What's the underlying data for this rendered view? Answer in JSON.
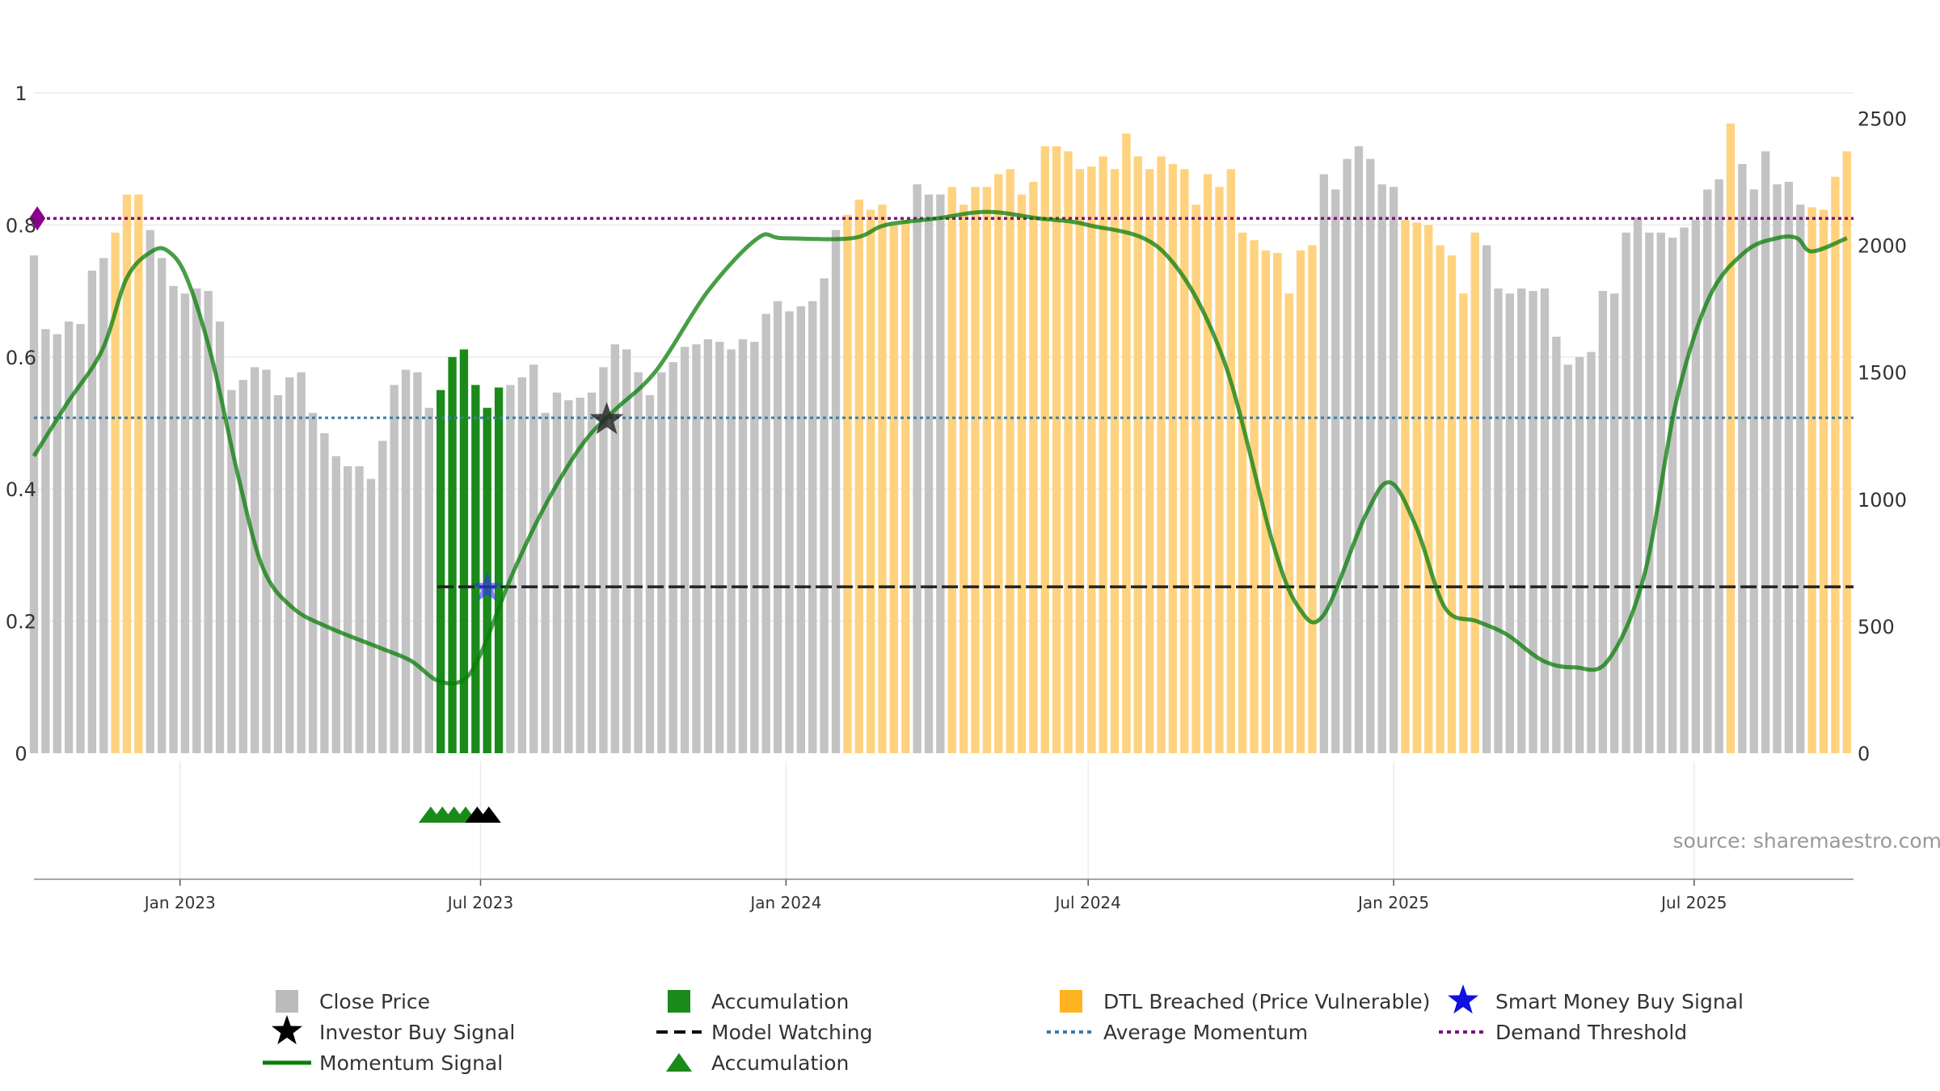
{
  "chart_data": {
    "type": "bar",
    "title": "",
    "source": "source: sharemaestro.com",
    "x_tick_labels": [
      "Jan 2023",
      "Jul 2023",
      "Jan 2024",
      "Jul 2024",
      "Jan 2025",
      "Jul 2025"
    ],
    "x_tick_dates": [
      "2023-01-01",
      "2023-07-01",
      "2024-01-01",
      "2024-07-01",
      "2025-01-01",
      "2025-07-01"
    ],
    "x_range": [
      "2022-10-05",
      "2025-10-05"
    ],
    "left_axis": {
      "ticks": [
        "0",
        "0.2",
        "0.4",
        "0.6",
        "0.8",
        "1"
      ],
      "ylim": [
        0,
        1
      ]
    },
    "right_axis": {
      "ticks": [
        "0",
        "500",
        "1000",
        "1500",
        "2000",
        "2500"
      ],
      "ylim": [
        0,
        2600
      ]
    },
    "grid": true,
    "legend_position": "bottom",
    "close_price_series": {
      "name": "Close Price",
      "start_date": "2022-10-05",
      "interval_days": 7,
      "values": [
        1960,
        1670,
        1650,
        1700,
        1690,
        1900,
        1950,
        2050,
        2200,
        2200,
        2060,
        1950,
        1840,
        1810,
        1830,
        1820,
        1700,
        1430,
        1470,
        1520,
        1510,
        1410,
        1480,
        1500,
        1340,
        1260,
        1170,
        1130,
        1130,
        1080,
        1230,
        1450,
        1510,
        1500,
        1360,
        1430,
        1560,
        1590,
        1450,
        1360,
        1440,
        1450,
        1480,
        1530,
        1340,
        1420,
        1390,
        1400,
        1420,
        1520,
        1610,
        1590,
        1500,
        1410,
        1500,
        1540,
        1600,
        1610,
        1630,
        1620,
        1590,
        1630,
        1620,
        1730,
        1780,
        1740,
        1760,
        1780,
        1870,
        2060,
        2120,
        2180,
        2140,
        2160,
        2080,
        2100,
        2240,
        2200,
        2200,
        2230,
        2160,
        2230,
        2230,
        2280,
        2300,
        2200,
        2250,
        2390,
        2390,
        2370,
        2300,
        2310,
        2350,
        2300,
        2440,
        2350,
        2300,
        2350,
        2320,
        2300,
        2160,
        2280,
        2230,
        2300,
        2050,
        2020,
        1980,
        1970,
        1810,
        1980,
        2000,
        2280,
        2220,
        2340,
        2390,
        2340,
        2240,
        2230,
        2100,
        2090,
        2080,
        2000,
        1960,
        1810,
        2050,
        2000,
        1830,
        1810,
        1830,
        1820,
        1830,
        1640,
        1530,
        1560,
        1580,
        1820,
        1810,
        2050,
        2110,
        2050,
        2050,
        2030,
        2070,
        2100,
        2220,
        2260,
        2480,
        2320,
        2220,
        2370,
        2240,
        2250,
        2160,
        2150,
        2140,
        2270,
        2370
      ],
      "status": [
        "p",
        "p",
        "p",
        "p",
        "p",
        "p",
        "p",
        "d",
        "d",
        "d",
        "p",
        "p",
        "p",
        "p",
        "p",
        "p",
        "p",
        "p",
        "p",
        "p",
        "p",
        "p",
        "p",
        "p",
        "p",
        "p",
        "p",
        "p",
        "p",
        "p",
        "p",
        "p",
        "p",
        "p",
        "p",
        "a",
        "a",
        "a",
        "a",
        "a",
        "a",
        "p",
        "p",
        "p",
        "p",
        "p",
        "p",
        "p",
        "p",
        "p",
        "p",
        "p",
        "p",
        "p",
        "p",
        "p",
        "p",
        "p",
        "p",
        "p",
        "p",
        "p",
        "p",
        "p",
        "p",
        "p",
        "p",
        "p",
        "p",
        "p",
        "d",
        "d",
        "d",
        "d",
        "d",
        "d",
        "p",
        "p",
        "p",
        "d",
        "d",
        "d",
        "d",
        "d",
        "d",
        "d",
        "d",
        "d",
        "d",
        "d",
        "d",
        "d",
        "d",
        "d",
        "d",
        "d",
        "d",
        "d",
        "d",
        "d",
        "d",
        "d",
        "d",
        "d",
        "d",
        "d",
        "d",
        "d",
        "d",
        "d",
        "d",
        "p",
        "p",
        "p",
        "p",
        "p",
        "p",
        "p",
        "d",
        "d",
        "d",
        "d",
        "d",
        "d",
        "d",
        "p",
        "p",
        "p",
        "p",
        "p",
        "p",
        "p",
        "p",
        "p",
        "p",
        "p",
        "p",
        "p",
        "p",
        "p",
        "p",
        "p",
        "p",
        "p",
        "p",
        "p",
        "d",
        "p",
        "p",
        "p",
        "p",
        "p",
        "p",
        "d",
        "d",
        "d",
        "d",
        "d",
        "d",
        "d",
        "d",
        "d",
        "d",
        "d",
        "d",
        "d"
      ]
    },
    "momentum_signal": {
      "name": "Momentum Signal",
      "points": [
        [
          "2022-10-05",
          0.45
        ],
        [
          "2022-10-25",
          0.53
        ],
        [
          "2022-11-15",
          0.61
        ],
        [
          "2022-11-30",
          0.72
        ],
        [
          "2022-12-15",
          0.76
        ],
        [
          "2022-12-25",
          0.76
        ],
        [
          "2023-01-05",
          0.72
        ],
        [
          "2023-01-20",
          0.6
        ],
        [
          "2023-02-05",
          0.42
        ],
        [
          "2023-02-20",
          0.28
        ],
        [
          "2023-03-10",
          0.22
        ],
        [
          "2023-04-01",
          0.19
        ],
        [
          "2023-05-01",
          0.16
        ],
        [
          "2023-05-20",
          0.14
        ],
        [
          "2023-06-05",
          0.11
        ],
        [
          "2023-06-20",
          0.11
        ],
        [
          "2023-07-01",
          0.15
        ],
        [
          "2023-07-20",
          0.27
        ],
        [
          "2023-08-10",
          0.38
        ],
        [
          "2023-09-01",
          0.47
        ],
        [
          "2023-09-20",
          0.52
        ],
        [
          "2023-10-15",
          0.58
        ],
        [
          "2023-11-15",
          0.7
        ],
        [
          "2023-12-15",
          0.78
        ],
        [
          "2023-12-30",
          0.78
        ],
        [
          "2024-02-10",
          0.78
        ],
        [
          "2024-03-01",
          0.8
        ],
        [
          "2024-04-01",
          0.81
        ],
        [
          "2024-05-01",
          0.82
        ],
        [
          "2024-06-01",
          0.81
        ],
        [
          "2024-07-01",
          0.8
        ],
        [
          "2024-08-15",
          0.76
        ],
        [
          "2024-09-20",
          0.6
        ],
        [
          "2024-10-20",
          0.32
        ],
        [
          "2024-11-05",
          0.22
        ],
        [
          "2024-11-20",
          0.21
        ],
        [
          "2024-12-15",
          0.36
        ],
        [
          "2024-12-30",
          0.41
        ],
        [
          "2025-01-15",
          0.34
        ],
        [
          "2025-02-01",
          0.22
        ],
        [
          "2025-02-20",
          0.2
        ],
        [
          "2025-03-10",
          0.18
        ],
        [
          "2025-04-01",
          0.14
        ],
        [
          "2025-04-20",
          0.13
        ],
        [
          "2025-05-10",
          0.14
        ],
        [
          "2025-06-01",
          0.27
        ],
        [
          "2025-06-20",
          0.53
        ],
        [
          "2025-07-10",
          0.69
        ],
        [
          "2025-08-01",
          0.76
        ],
        [
          "2025-08-20",
          0.78
        ],
        [
          "2025-09-01",
          0.78
        ],
        [
          "2025-09-10",
          0.76
        ],
        [
          "2025-10-01",
          0.78
        ]
      ]
    },
    "average_momentum": {
      "name": "Average Momentum",
      "value": 0.508
    },
    "demand_threshold": {
      "name": "Demand Threshold",
      "value": 0.81
    },
    "model_watching": {
      "name": "Model Watching",
      "value": 0.252,
      "start": "2023-06-05",
      "end": "2025-10-05"
    },
    "investor_buy_signal": {
      "name": "Investor Buy Signal",
      "date": "2023-09-15",
      "value": 0.505
    },
    "smart_money_buy_signal": {
      "name": "Smart Money Buy Signal",
      "date": "2023-07-05",
      "value": 0.25
    },
    "demand_marker": {
      "date": "2022-10-07",
      "value": 0.81
    },
    "accumulation_triangles": [
      {
        "date": "2023-06-01",
        "color": "#1a8a1a"
      },
      {
        "date": "2023-06-08",
        "color": "#1a8a1a"
      },
      {
        "date": "2023-06-15",
        "color": "#1a8a1a"
      },
      {
        "date": "2023-06-22",
        "color": "#1a8a1a"
      },
      {
        "date": "2023-06-29",
        "color": "#000000"
      },
      {
        "date": "2023-07-06",
        "color": "#000000"
      }
    ],
    "colors": {
      "price": "#c3c3c3",
      "accumulation": "#1a8a1a",
      "dtl": "#ffd27f",
      "momentum": "#0a7d0a",
      "average": "#3a7ca5",
      "threshold": "#7b147b",
      "watching": "#222222",
      "smart_money": "#3232ff"
    },
    "legend": [
      {
        "label": "Close Price",
        "symbol": "square",
        "color": "#bbbbbb"
      },
      {
        "label": "Accumulation",
        "symbol": "square",
        "color": "#1a8a1a"
      },
      {
        "label": "DTL Breached (Price Vulnerable)",
        "symbol": "square",
        "color": "#ffb320"
      },
      {
        "label": "Smart Money Buy Signal",
        "symbol": "star",
        "color": "#1010e0"
      },
      {
        "label": "Investor Buy Signal",
        "symbol": "star",
        "color": "#000000"
      },
      {
        "label": "Model Watching",
        "symbol": "dash",
        "color": "#000000"
      },
      {
        "label": "Average Momentum",
        "symbol": "dot",
        "color": "#3a7ca5"
      },
      {
        "label": "Demand Threshold",
        "symbol": "dot",
        "color": "#7b147b"
      },
      {
        "label": "Momentum Signal",
        "symbol": "line",
        "color": "#0a7d0a"
      },
      {
        "label": "Accumulation",
        "symbol": "triangle",
        "color": "#1a8a1a"
      }
    ]
  }
}
